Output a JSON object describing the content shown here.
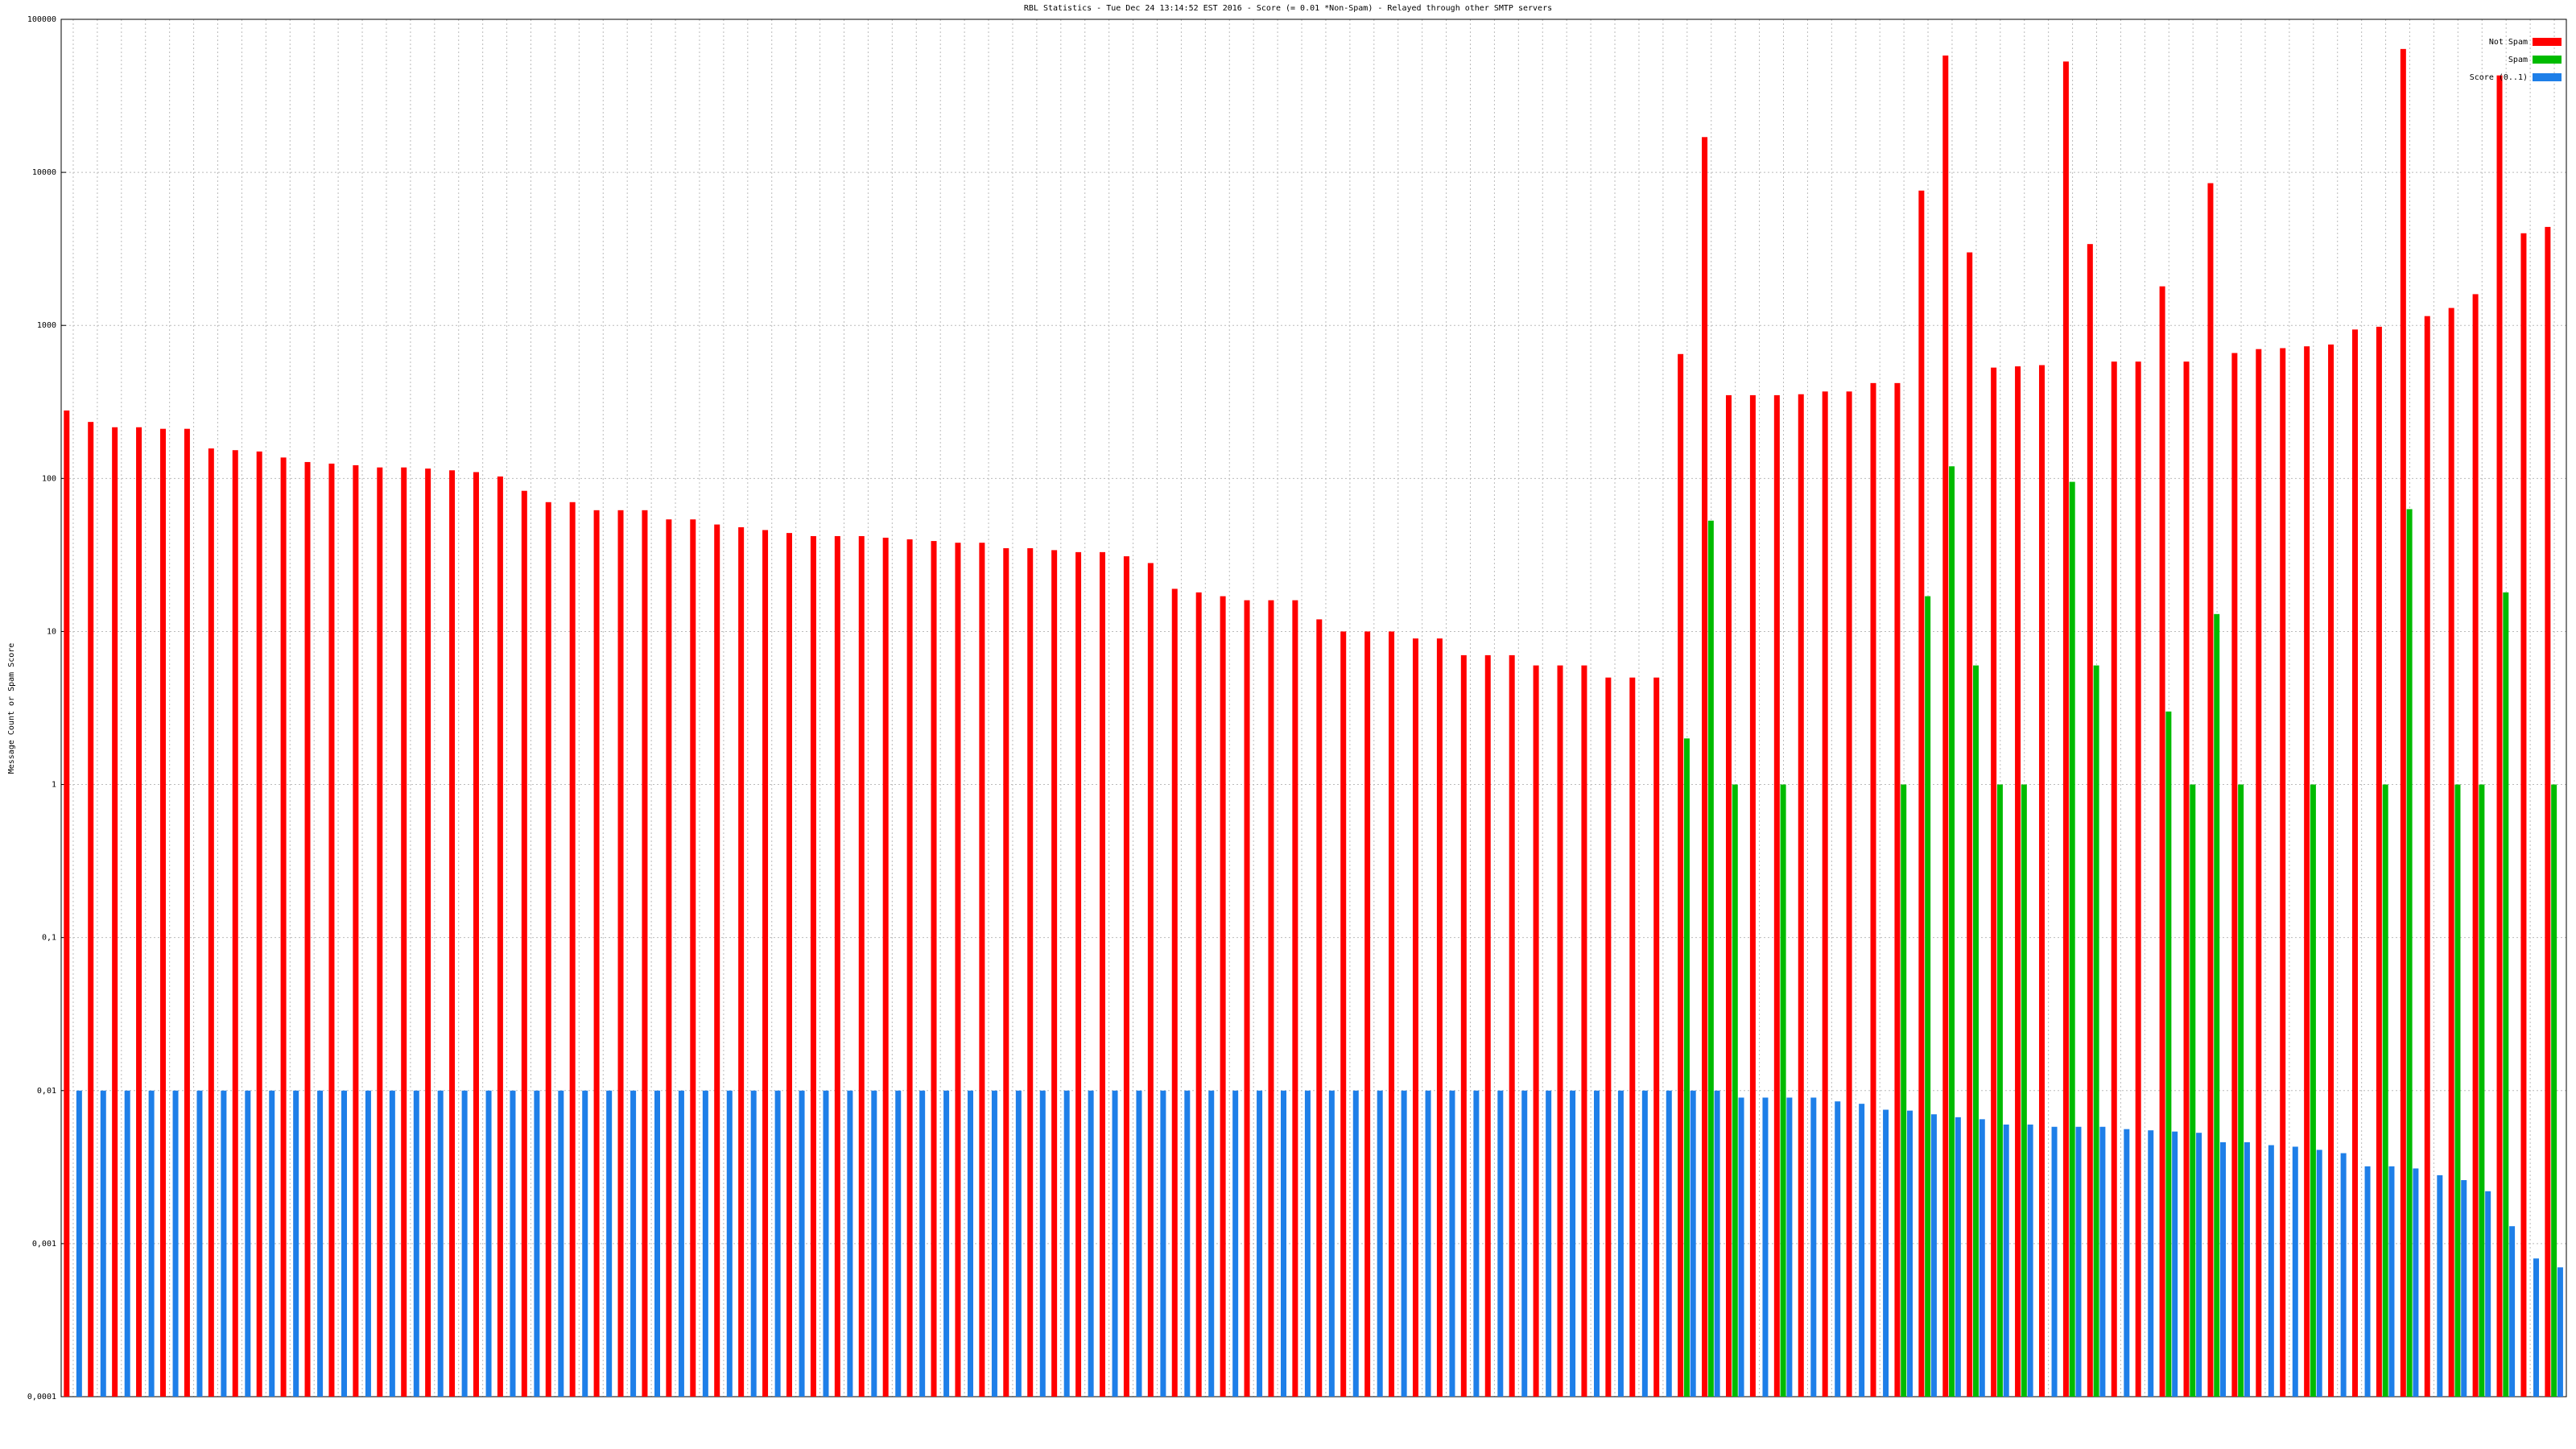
{
  "chart_data": {
    "type": "bar",
    "title": "RBL Statistics - Tue Dec 24 13:14:52 EST 2016 - Score (= 0.01 *Non-Spam) - Relayed through other SMTP servers",
    "y_label": "Message Count or Spam Score",
    "log_scale": true,
    "grid": true,
    "legend": "top-right",
    "ylim": [
      0.0001,
      100000
    ],
    "yticks": [
      {
        "value": 0.0001,
        "label": "0,0001"
      },
      {
        "value": 0.001,
        "label": "0,001"
      },
      {
        "value": 0.01,
        "label": "0,01"
      },
      {
        "value": 0.1,
        "label": "0,1"
      },
      1,
      10,
      100,
      1000,
      10000,
      100000
    ],
    "categories": [
      null,
      null,
      null,
      null,
      null,
      null,
      null,
      null,
      null,
      null,
      null,
      null,
      null,
      null,
      null,
      null,
      null,
      null,
      null,
      null,
      null,
      null,
      null,
      null,
      null,
      null,
      null,
      null,
      null,
      null,
      null,
      null,
      null,
      null,
      null,
      null,
      null,
      null,
      null,
      null,
      null,
      null,
      null,
      null,
      null,
      null,
      null,
      null,
      null,
      null,
      null,
      null,
      null,
      null,
      null,
      null,
      null,
      null,
      null,
      null,
      null,
      null,
      null,
      null,
      null,
      null,
      null,
      null,
      null,
      null,
      null,
      null,
      null,
      null,
      null,
      null,
      null,
      null,
      null,
      null,
      null,
      null,
      null,
      null,
      null,
      null,
      null,
      null,
      null,
      null,
      null,
      null,
      null,
      null,
      null,
      null,
      null,
      null,
      null,
      null,
      null,
      null,
      null,
      null
    ],
    "series": [
      {
        "name": "Not Spam",
        "color": "#ff0000",
        "values": [
          278,
          234,
          216,
          216,
          211,
          211,
          157,
          153,
          150,
          137,
          128,
          125,
          122,
          118,
          118,
          116,
          113,
          110,
          103,
          83,
          70,
          70,
          62,
          62,
          62,
          54,
          54,
          50,
          48,
          46,
          44,
          42,
          42,
          42,
          41,
          40,
          39,
          38,
          38,
          35,
          35,
          34,
          33,
          33,
          31,
          28,
          19,
          18,
          17,
          16,
          16,
          16,
          12,
          10,
          10,
          10,
          9,
          9,
          7,
          7,
          7,
          6,
          6,
          6,
          5,
          5,
          5,
          650,
          17000,
          350,
          350,
          350,
          355,
          370,
          370,
          420,
          420,
          7600,
          58000,
          3000,
          530,
          540,
          550,
          53000,
          3400,
          580,
          580,
          1800,
          580,
          8500,
          660,
          700,
          710,
          730,
          750,
          940,
          980,
          64000,
          1150,
          1300,
          1600,
          43000,
          4000,
          4400
        ]
      },
      {
        "name": "Spam",
        "color": "#00bb00",
        "values": [
          null,
          null,
          null,
          null,
          null,
          null,
          null,
          null,
          null,
          null,
          null,
          null,
          null,
          null,
          null,
          null,
          null,
          null,
          null,
          null,
          null,
          null,
          null,
          null,
          null,
          null,
          null,
          null,
          null,
          null,
          null,
          null,
          null,
          null,
          null,
          null,
          null,
          null,
          null,
          null,
          null,
          null,
          null,
          null,
          null,
          null,
          null,
          null,
          null,
          null,
          null,
          null,
          null,
          null,
          null,
          null,
          null,
          null,
          null,
          null,
          null,
          null,
          null,
          null,
          null,
          null,
          null,
          2,
          53,
          1,
          null,
          1,
          null,
          null,
          null,
          null,
          1,
          17,
          120,
          6,
          1,
          1,
          null,
          95,
          6,
          null,
          null,
          3,
          1,
          13,
          1,
          null,
          null,
          1,
          null,
          null,
          1,
          63,
          null,
          1,
          1,
          18,
          null,
          1
        ]
      },
      {
        "name": "Score (0..1)",
        "color": "#1e7fe8",
        "values": [
          0.01,
          0.01,
          0.01,
          0.01,
          0.01,
          0.01,
          0.01,
          0.01,
          0.01,
          0.01,
          0.01,
          0.01,
          0.01,
          0.01,
          0.01,
          0.01,
          0.01,
          0.01,
          0.01,
          0.01,
          0.01,
          0.01,
          0.01,
          0.01,
          0.01,
          0.01,
          0.01,
          0.01,
          0.01,
          0.01,
          0.01,
          0.01,
          0.01,
          0.01,
          0.01,
          0.01,
          0.01,
          0.01,
          0.01,
          0.01,
          0.01,
          0.01,
          0.01,
          0.01,
          0.01,
          0.01,
          0.01,
          0.01,
          0.01,
          0.01,
          0.01,
          0.01,
          0.01,
          0.01,
          0.01,
          0.01,
          0.01,
          0.01,
          0.01,
          0.01,
          0.01,
          0.01,
          0.01,
          0.01,
          0.01,
          0.01,
          0.01,
          0.01,
          0.01,
          0.009,
          0.009,
          0.009,
          0.009,
          0.0085,
          0.0082,
          0.0075,
          0.0074,
          0.007,
          0.0067,
          0.0065,
          0.006,
          0.006,
          0.0058,
          0.0058,
          0.0058,
          0.0056,
          0.0055,
          0.0054,
          0.0053,
          0.0046,
          0.0046,
          0.0044,
          0.0043,
          0.0041,
          0.0039,
          0.0032,
          0.0032,
          0.0031,
          0.0028,
          0.0026,
          0.0022,
          0.0013,
          0.0008,
          0.0007
        ]
      }
    ]
  }
}
